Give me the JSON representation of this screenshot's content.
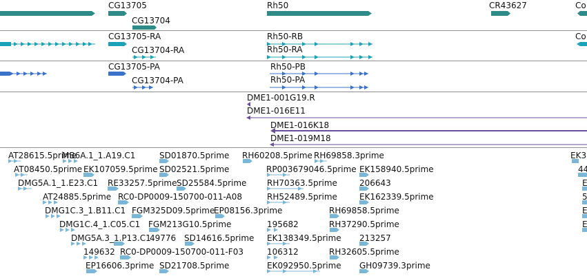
{
  "colors": {
    "gene": "#2e8b87",
    "mrna_teal": "#1aa3b8",
    "mrna_blue": "#3a72c9",
    "clone": "#6a4c9c",
    "est": "#7ab6d8",
    "border": "#8f8f8f"
  },
  "tracks": [
    {
      "name": "genes",
      "features": [
        {
          "label": ""
        },
        {
          "label": "CG13705"
        },
        {
          "label": "CG13704"
        },
        {
          "label": "Rh50"
        },
        {
          "label": "CR43627"
        },
        {
          "label": "Co"
        }
      ]
    },
    {
      "name": "transcripts-ra",
      "features": [
        {
          "label": ""
        },
        {
          "label": "CG13705-RA"
        },
        {
          "label": "CG13704-RA"
        },
        {
          "label": "Rh50-RB"
        },
        {
          "label": "Rh50-RA"
        },
        {
          "label": "Co"
        }
      ]
    },
    {
      "name": "proteins-pa",
      "features": [
        {
          "label": ""
        },
        {
          "label": "CG13705-PA"
        },
        {
          "label": "CG13704-PA"
        },
        {
          "label": "Rh50-PB"
        },
        {
          "label": "Rh50-PA"
        }
      ]
    },
    {
      "name": "clones",
      "features": [
        {
          "label": "DME1-001G19.R"
        },
        {
          "label": "DME1-016E11"
        },
        {
          "label": "DME1-016K18"
        },
        {
          "label": "DME1-019M18"
        }
      ]
    },
    {
      "name": "ests",
      "features": [
        {
          "label": "AT28615.5prime"
        },
        {
          "label": "MB6A.1_1.A19.C1"
        },
        {
          "label": "SD01870.5prime"
        },
        {
          "label": "RH60208.5prime"
        },
        {
          "label": "RH69858.3prime"
        },
        {
          "label": "EK3"
        },
        {
          "label": "AT08450.5prime"
        },
        {
          "label": "EK107059.5prime"
        },
        {
          "label": "SD02521.5prime"
        },
        {
          "label": "RP003679046.5prime"
        },
        {
          "label": "EK158940.5prime"
        },
        {
          "label": "44"
        },
        {
          "label": "DMG5A.1_1.E23.C1"
        },
        {
          "label": "RE33257.5prime"
        },
        {
          "label": "SD25584.5prime"
        },
        {
          "label": "RH70363.5prime"
        },
        {
          "label": "206643"
        },
        {
          "label": "E"
        },
        {
          "label": "AT24885.5prime"
        },
        {
          "label": "RC0-DP0009-150700-011-A08"
        },
        {
          "label": "RH52489.5prime"
        },
        {
          "label": "EK162339.5prime"
        },
        {
          "label": "5"
        },
        {
          "label": "DMG1C.3_1.B11.C1"
        },
        {
          "label": "FGM325D09.5prime"
        },
        {
          "label": "EP08156.3prime"
        },
        {
          "label": "RH69858.5prime"
        },
        {
          "label": "E"
        },
        {
          "label": "DMG1C.4_1.C05.C1"
        },
        {
          "label": "FGM213G10.5prime"
        },
        {
          "label": "195682"
        },
        {
          "label": "RH37290.5prime"
        },
        {
          "label": "E"
        },
        {
          "label": "DMG5A.3_1.P13.C1"
        },
        {
          "label": "49776"
        },
        {
          "label": "SD14616.5prime"
        },
        {
          "label": "EK138349.5prime"
        },
        {
          "label": "213257"
        },
        {
          "label": "149632"
        },
        {
          "label": "RC0-DP0009-150700-011-F03"
        },
        {
          "label": "106312"
        },
        {
          "label": "RH32605.5prime"
        },
        {
          "label": "EP16606.3prime"
        },
        {
          "label": "SD21708.5prime"
        },
        {
          "label": "EK092950.5prime"
        },
        {
          "label": "GH09739.3prime"
        }
      ]
    }
  ]
}
